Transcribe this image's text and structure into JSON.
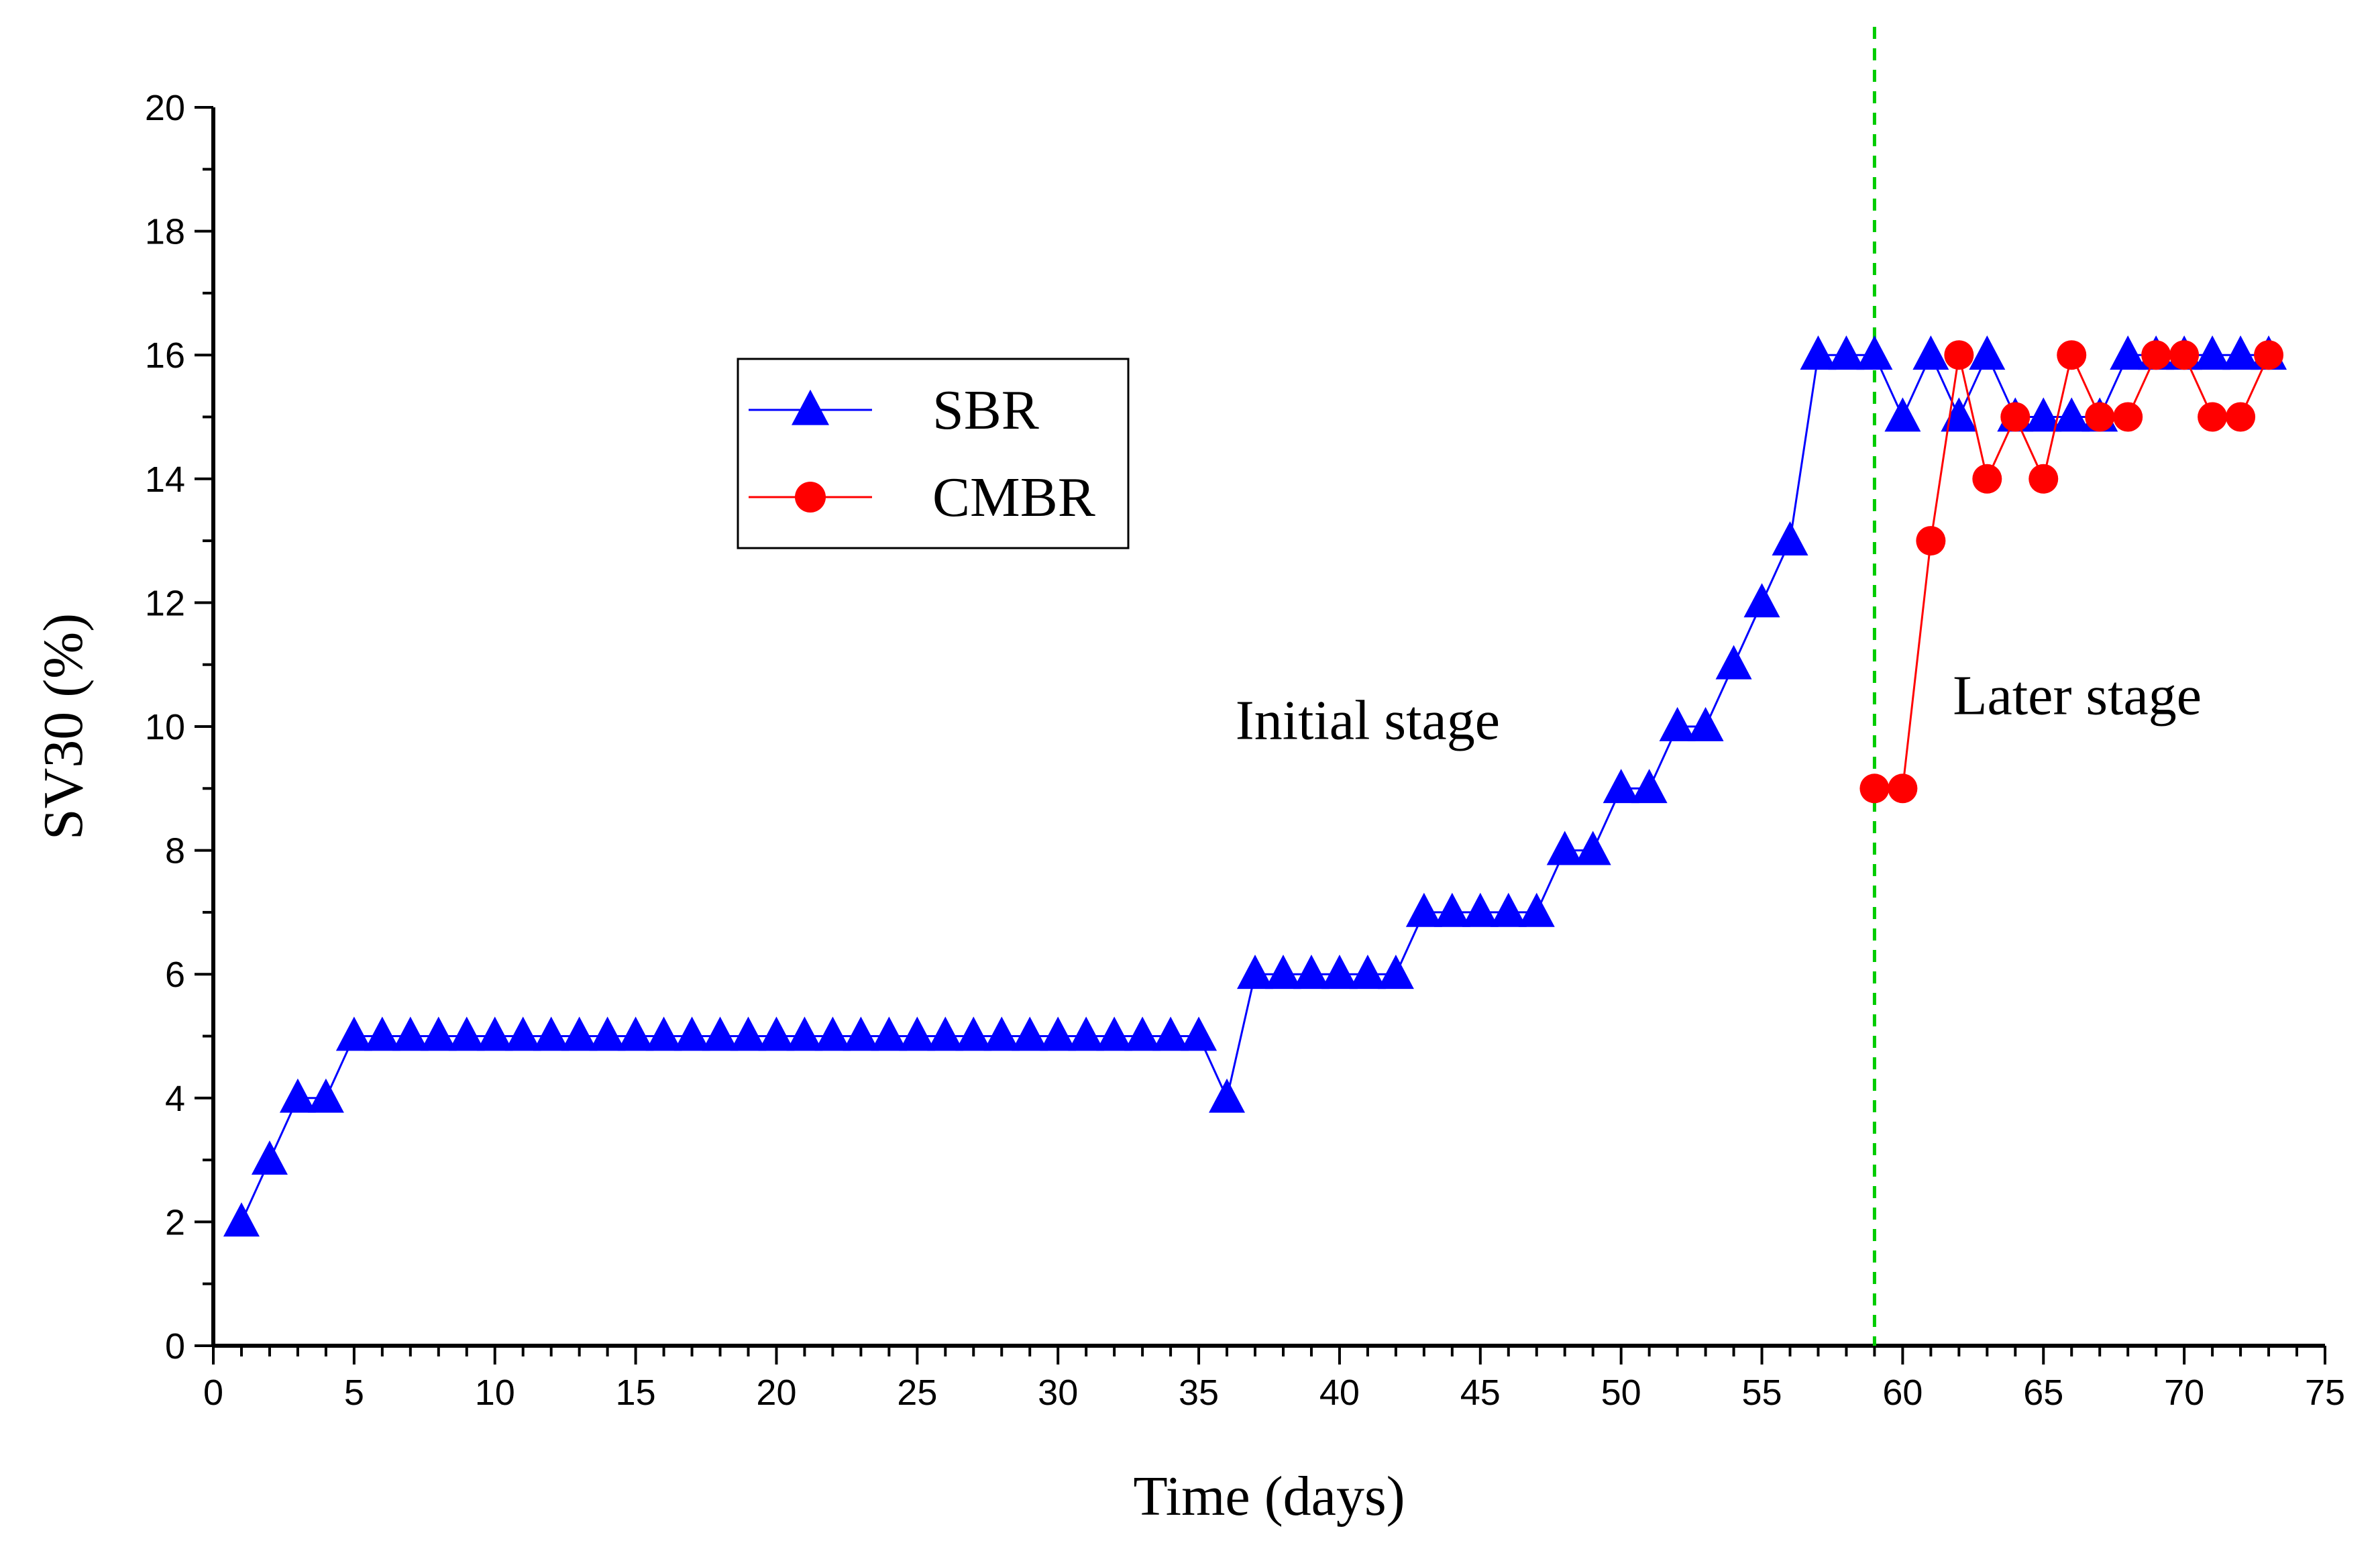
{
  "chart_data": {
    "type": "line",
    "title": "",
    "xlabel": "Time (days)",
    "ylabel": "SV30 (%)",
    "xlim": [
      0,
      75
    ],
    "ylim": [
      0,
      20
    ],
    "x_ticks": [
      "0",
      "5",
      "10",
      "15",
      "20",
      "25",
      "30",
      "35",
      "40",
      "45",
      "50",
      "55",
      "60",
      "65",
      "70",
      "75"
    ],
    "y_ticks": [
      "0",
      "2",
      "4",
      "6",
      "8",
      "10",
      "12",
      "14",
      "16",
      "18",
      "20"
    ],
    "grid": false,
    "legend_position": "upper-left-center",
    "colors": {
      "SBR": "#0000ff",
      "CMBR": "#ff0000",
      "divider": "#00cc00"
    },
    "series": [
      {
        "name": "SBR",
        "marker": "triangle",
        "x": [
          1,
          2,
          3,
          4,
          5,
          6,
          7,
          8,
          9,
          10,
          11,
          12,
          13,
          14,
          15,
          16,
          17,
          18,
          19,
          20,
          21,
          22,
          23,
          24,
          25,
          26,
          27,
          28,
          29,
          30,
          31,
          32,
          33,
          34,
          35,
          36,
          37,
          38,
          39,
          40,
          41,
          42,
          43,
          44,
          45,
          46,
          47,
          48,
          49,
          50,
          51,
          52,
          53,
          54,
          55,
          56,
          57,
          58,
          59,
          60,
          61,
          62,
          63,
          64,
          65,
          66,
          67,
          68,
          69,
          70,
          71,
          72,
          73
        ],
        "values": [
          2,
          3,
          4,
          4,
          5,
          5,
          5,
          5,
          5,
          5,
          5,
          5,
          5,
          5,
          5,
          5,
          5,
          5,
          5,
          5,
          5,
          5,
          5,
          5,
          5,
          5,
          5,
          5,
          5,
          5,
          5,
          5,
          5,
          5,
          5,
          4,
          6,
          6,
          6,
          6,
          6,
          6,
          7,
          7,
          7,
          7,
          7,
          8,
          8,
          9,
          9,
          10,
          10,
          11,
          12,
          13,
          16,
          16,
          16,
          15,
          16,
          15,
          16,
          15,
          15,
          15,
          15,
          16,
          16,
          16,
          16,
          16,
          16
        ]
      },
      {
        "name": "CMBR",
        "marker": "circle",
        "x": [
          59,
          60,
          61,
          62,
          63,
          64,
          65,
          66,
          67,
          68,
          69,
          70,
          71,
          72,
          73
        ],
        "values": [
          9,
          9,
          13,
          16,
          14,
          15,
          14,
          16,
          15,
          15,
          16,
          16,
          15,
          15,
          16
        ]
      }
    ],
    "divider_x": 59,
    "annotations": [
      {
        "text": "Initial stage",
        "x": 41,
        "y": 9.8
      },
      {
        "text": "Later stage",
        "x": 66.2,
        "y": 10.2
      }
    ]
  }
}
